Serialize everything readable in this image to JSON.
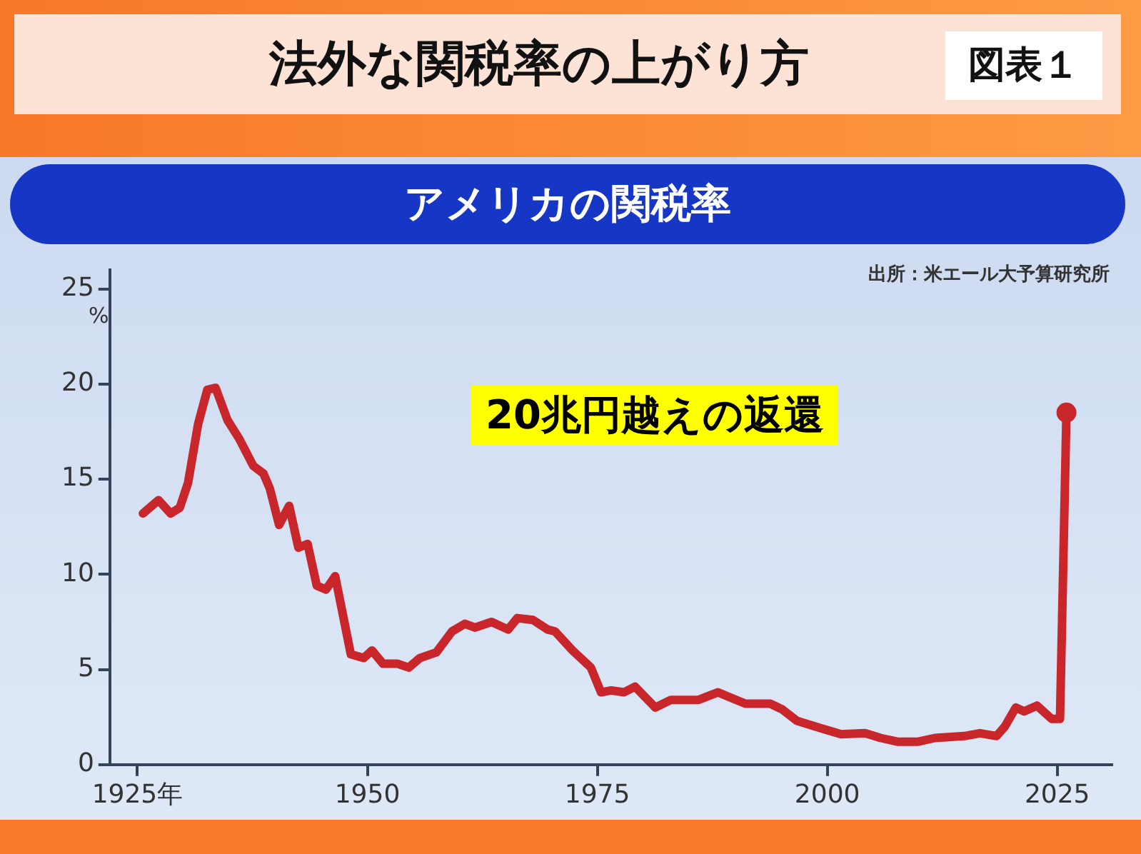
{
  "chart_data": {
    "type": "line",
    "title": "法外な関税率の上がり方",
    "subtitle": "アメリカの関税率",
    "ylabel": "%",
    "annotations": [
      "出所：米エール大予算研究所",
      "20兆円越えの返還",
      "図表１"
    ],
    "series": [
      {
        "color": "#c8262b",
        "marker": "none",
        "x": [
          1925.6,
          1927.3,
          1928.6,
          1929.6,
          1930.5,
          1931.6,
          1932.6,
          1933.5,
          1934.8,
          1936.1,
          1937.6,
          1938.7,
          1939.4,
          1940.4,
          1941.5,
          1942.5,
          1943.5,
          1944.5,
          1945.5,
          1946.5,
          1948.2,
          1949.6,
          1950.5,
          1951.7,
          1953.3,
          1954.5,
          1955.7,
          1957.5,
          1959.2,
          1960.6,
          1961.7,
          1963.5,
          1965.3,
          1966.3,
          1968.0,
          1969.6,
          1970.4,
          1972.3,
          1974.3,
          1975.4,
          1976.5,
          1977.9,
          1979.1,
          1981.3,
          1983.0,
          1986.0,
          1988.1,
          1991.1,
          1993.8,
          1995.1,
          1996.7,
          1999.4,
          2001.5,
          2004.1,
          2005.8,
          2007.7,
          2009.8,
          2011.7,
          2014.9,
          2016.6,
          2018.4,
          2019.3,
          2020.5,
          2021.4,
          2022.8,
          2024.4,
          2025.3,
          2026.0
        ],
        "values": [
          13.2,
          13.9,
          13.2,
          13.5,
          14.8,
          17.9,
          19.7,
          19.8,
          18.1,
          17.1,
          15.7,
          15.3,
          14.5,
          12.6,
          13.6,
          11.4,
          11.6,
          9.4,
          9.2,
          9.9,
          5.8,
          5.6,
          6.0,
          5.3,
          5.3,
          5.1,
          5.6,
          5.9,
          7.0,
          7.4,
          7.2,
          7.5,
          7.1,
          7.7,
          7.6,
          7.1,
          7.0,
          6.0,
          5.1,
          3.8,
          3.9,
          3.8,
          4.1,
          3.0,
          3.4,
          3.4,
          3.8,
          3.2,
          3.2,
          2.9,
          2.3,
          1.9,
          1.6,
          1.65,
          1.4,
          1.2,
          1.2,
          1.4,
          1.5,
          1.65,
          1.5,
          2.0,
          3.0,
          2.8,
          3.1,
          2.4,
          2.4,
          18.5
        ]
      },
      {
        "type": "scatter",
        "color": "#c8262b",
        "marker": "circle",
        "x": [
          2026.0
        ],
        "values": [
          18.5
        ]
      }
    ],
    "xlim": [
      1922,
      2031
    ],
    "xticks": [
      {
        "value": 1925,
        "label": "1925年"
      },
      1950,
      1975,
      2000,
      2025
    ],
    "ylim": [
      0,
      26
    ],
    "yticks": [
      0,
      5,
      10,
      15,
      20,
      25
    ],
    "grid": false,
    "legend": false
  }
}
